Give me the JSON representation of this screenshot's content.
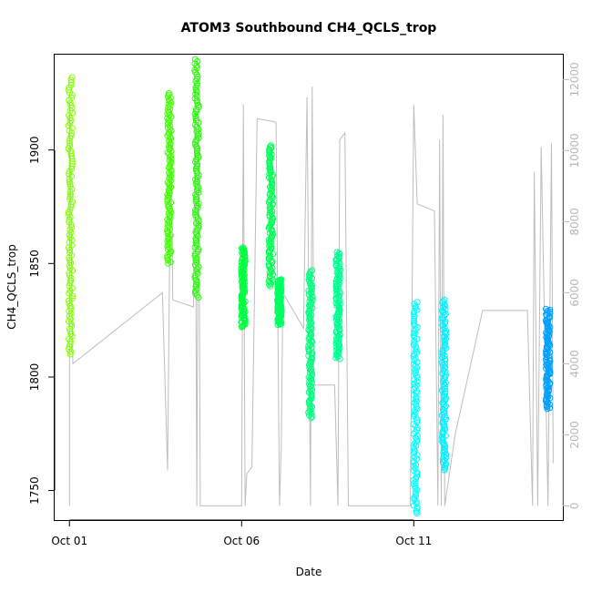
{
  "chart_data": {
    "type": "scatter",
    "title": "ATOM3 Southbound CH4_QCLS_trop",
    "xlabel": "Date",
    "ylabel": "CH4_QCLS_trop",
    "x_ticks": [
      "Oct 01",
      "Oct 06",
      "Oct 11"
    ],
    "x_tick_days": [
      1,
      6,
      11
    ],
    "xlim_days": [
      0.57,
      15.33
    ],
    "ylim": [
      1737,
      1942
    ],
    "y_ticks": [
      1750,
      1800,
      1850,
      1900
    ],
    "y2_label": "",
    "y2lim": [
      -400,
      12700
    ],
    "y2_ticks": [
      0,
      2000,
      4000,
      6000,
      8000,
      10000,
      12000
    ],
    "grid": false,
    "legend": "none",
    "altitude_line_color": "#bebebe",
    "series": [
      {
        "day": 1.03,
        "ymin": 1810,
        "ymax": 1932,
        "color": "#80ff00"
      },
      {
        "day": 3.9,
        "ymin": 1850,
        "ymax": 1925,
        "color": "#40ff00"
      },
      {
        "day": 4.7,
        "ymin": 1835,
        "ymax": 1940,
        "color": "#22ff00"
      },
      {
        "day": 6.05,
        "ymin": 1822,
        "ymax": 1857,
        "color": "#00ff40"
      },
      {
        "day": 6.85,
        "ymin": 1840,
        "ymax": 1902,
        "color": "#00ff55"
      },
      {
        "day": 7.1,
        "ymin": 1823,
        "ymax": 1843,
        "color": "#00ff60"
      },
      {
        "day": 8.0,
        "ymin": 1782,
        "ymax": 1847,
        "color": "#00ff80"
      },
      {
        "day": 8.8,
        "ymin": 1808,
        "ymax": 1855,
        "color": "#00ff90"
      },
      {
        "day": 11.05,
        "ymin": 1740,
        "ymax": 1833,
        "color": "#00ffff"
      },
      {
        "day": 11.88,
        "ymin": 1759,
        "ymax": 1834,
        "color": "#00f0ff"
      },
      {
        "day": 14.9,
        "ymin": 1786,
        "ymax": 1830,
        "color": "#00a0ff"
      }
    ],
    "altitude_path": [
      [
        1.0,
        0
      ],
      [
        1.0,
        11400
      ],
      [
        1.1,
        4000
      ],
      [
        3.7,
        6000
      ],
      [
        3.85,
        1000
      ],
      [
        3.95,
        11100
      ],
      [
        4.0,
        5800
      ],
      [
        4.6,
        5600
      ],
      [
        4.65,
        11900
      ],
      [
        4.7,
        0
      ],
      [
        4.75,
        11500
      ],
      [
        4.8,
        0
      ],
      [
        6.0,
        0
      ],
      [
        6.05,
        11300
      ],
      [
        6.1,
        0
      ],
      [
        6.15,
        900
      ],
      [
        6.3,
        1100
      ],
      [
        6.45,
        10900
      ],
      [
        7.0,
        10800
      ],
      [
        7.1,
        0
      ],
      [
        7.15,
        1600
      ],
      [
        7.2,
        6000
      ],
      [
        7.8,
        5000
      ],
      [
        7.9,
        11500
      ],
      [
        8.0,
        0
      ],
      [
        8.05,
        11800
      ],
      [
        8.1,
        3400
      ],
      [
        8.7,
        3400
      ],
      [
        8.8,
        0
      ],
      [
        8.85,
        10300
      ],
      [
        9.0,
        10500
      ],
      [
        9.1,
        0
      ],
      [
        10.9,
        0
      ],
      [
        11.0,
        11300
      ],
      [
        11.1,
        8500
      ],
      [
        11.6,
        8300
      ],
      [
        11.7,
        0
      ],
      [
        11.75,
        10300
      ],
      [
        11.8,
        0
      ],
      [
        11.85,
        11000
      ],
      [
        11.9,
        0
      ],
      [
        12.2,
        2000
      ],
      [
        13.0,
        5500
      ],
      [
        14.3,
        5500
      ],
      [
        14.45,
        0
      ],
      [
        14.5,
        9400
      ],
      [
        14.6,
        0
      ],
      [
        14.7,
        10100
      ],
      [
        14.9,
        0
      ],
      [
        15.0,
        10200
      ],
      [
        15.05,
        1200
      ]
    ]
  }
}
